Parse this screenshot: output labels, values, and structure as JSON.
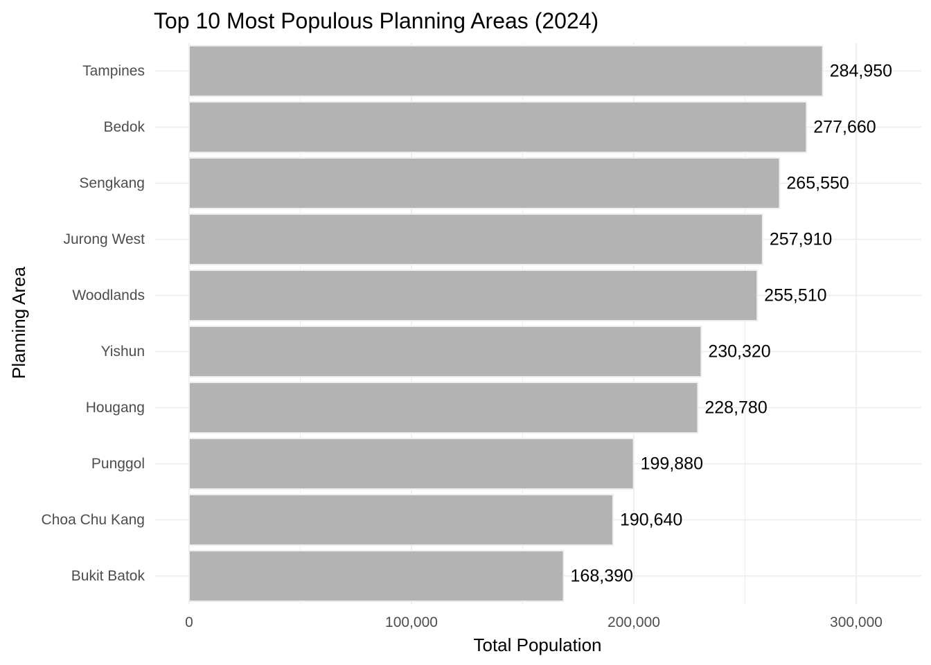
{
  "chart_data": {
    "type": "bar",
    "orientation": "horizontal",
    "title": "Top 10 Most Populous Planning Areas (2024)",
    "xlabel": "Total Population",
    "ylabel": "Planning Area",
    "categories": [
      "Tampines",
      "Bedok",
      "Sengkang",
      "Jurong West",
      "Woodlands",
      "Yishun",
      "Hougang",
      "Punggol",
      "Choa Chu Kang",
      "Bukit Batok"
    ],
    "values": [
      284950,
      277660,
      265550,
      257910,
      255510,
      230320,
      228780,
      199880,
      190640,
      168390
    ],
    "value_labels": [
      "284,950",
      "277,660",
      "265,550",
      "257,910",
      "255,510",
      "230,320",
      "228,780",
      "199,880",
      "190,640",
      "168,390"
    ],
    "xlim": [
      0,
      330000
    ],
    "x_ticks": [
      0,
      100000,
      200000,
      300000
    ],
    "x_tick_labels": [
      "0",
      "100,000",
      "200,000",
      "300,000"
    ],
    "bar_color": "#b3b3b3",
    "bar_outline_color": "#eeeeee",
    "grid": true,
    "grid_color": "#ebebeb",
    "legend": "none"
  }
}
